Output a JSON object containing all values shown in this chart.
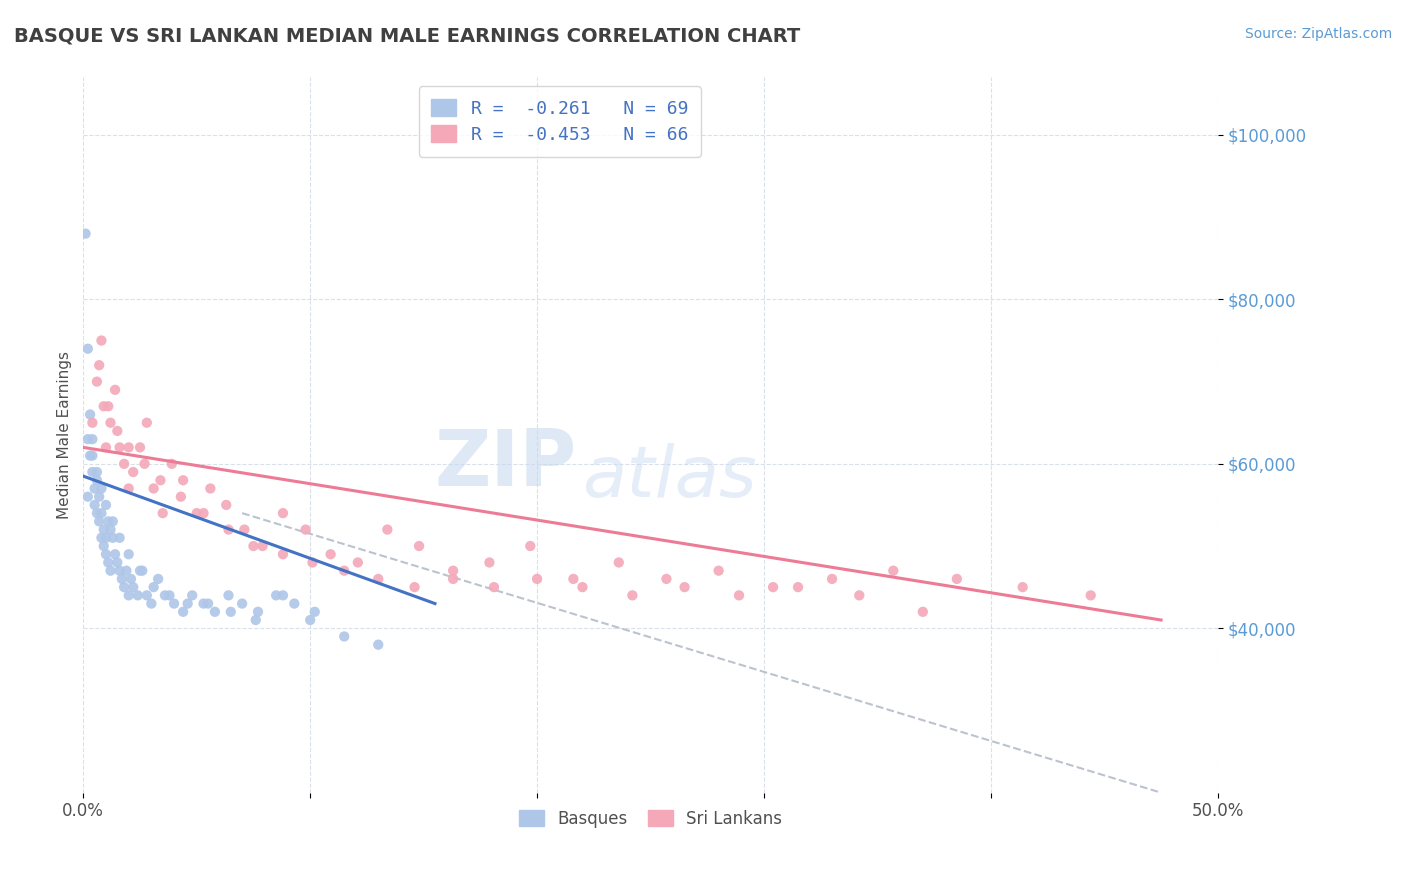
{
  "title": "BASQUE VS SRI LANKAN MEDIAN MALE EARNINGS CORRELATION CHART",
  "source": "Source: ZipAtlas.com",
  "ylabel": "Median Male Earnings",
  "watermark_zip": "ZIP",
  "watermark_atlas": "atlas",
  "xlim": [
    0.0,
    0.5
  ],
  "ylim": [
    20000,
    107000
  ],
  "xtick_vals": [
    0.0,
    0.1,
    0.2,
    0.3,
    0.4,
    0.5
  ],
  "xtick_labels": [
    "0.0%",
    "",
    "",
    "",
    "",
    "50.0%"
  ],
  "ytick_vals": [
    40000,
    60000,
    80000,
    100000
  ],
  "ytick_labels": [
    "$40,000",
    "$60,000",
    "$80,000",
    "$100,000"
  ],
  "ytick_color": "#5b9bd5",
  "title_color": "#404040",
  "source_color": "#5b9bd5",
  "basque_color": "#aec6e8",
  "srilanka_color": "#f4a8b8",
  "basque_line_color": "#4472c4",
  "srilanka_line_color": "#ed7b96",
  "dashed_line_color": "#b0b8c8",
  "legend_label1": "R =  -0.261   N = 69",
  "legend_label2": "R =  -0.453   N = 66",
  "basque_line_x": [
    0.0,
    0.155
  ],
  "basque_line_y": [
    58500,
    43000
  ],
  "srilanka_line_x": [
    0.0,
    0.475
  ],
  "srilanka_line_y": [
    62000,
    41000
  ],
  "dash_line_x": [
    0.07,
    0.475
  ],
  "dash_line_y": [
    54000,
    20000
  ],
  "basque_x": [
    0.001,
    0.002,
    0.002,
    0.003,
    0.003,
    0.004,
    0.004,
    0.005,
    0.005,
    0.006,
    0.006,
    0.007,
    0.007,
    0.008,
    0.008,
    0.009,
    0.009,
    0.01,
    0.01,
    0.011,
    0.011,
    0.012,
    0.012,
    0.013,
    0.014,
    0.015,
    0.016,
    0.017,
    0.018,
    0.019,
    0.02,
    0.021,
    0.022,
    0.024,
    0.026,
    0.028,
    0.03,
    0.033,
    0.036,
    0.04,
    0.044,
    0.048,
    0.053,
    0.058,
    0.064,
    0.07,
    0.077,
    0.085,
    0.093,
    0.102,
    0.002,
    0.004,
    0.006,
    0.008,
    0.01,
    0.013,
    0.016,
    0.02,
    0.025,
    0.031,
    0.038,
    0.046,
    0.055,
    0.065,
    0.076,
    0.088,
    0.1,
    0.115,
    0.13
  ],
  "basque_y": [
    88000,
    74000,
    56000,
    66000,
    61000,
    59000,
    63000,
    57000,
    55000,
    54000,
    58000,
    53000,
    56000,
    51000,
    54000,
    52000,
    50000,
    51000,
    49000,
    53000,
    48000,
    52000,
    47000,
    51000,
    49000,
    48000,
    47000,
    46000,
    45000,
    47000,
    44000,
    46000,
    45000,
    44000,
    47000,
    44000,
    43000,
    46000,
    44000,
    43000,
    42000,
    44000,
    43000,
    42000,
    44000,
    43000,
    42000,
    44000,
    43000,
    42000,
    63000,
    61000,
    59000,
    57000,
    55000,
    53000,
    51000,
    49000,
    47000,
    45000,
    44000,
    43000,
    43000,
    42000,
    41000,
    44000,
    41000,
    39000,
    38000
  ],
  "srilanka_x": [
    0.004,
    0.006,
    0.008,
    0.009,
    0.01,
    0.012,
    0.014,
    0.016,
    0.018,
    0.02,
    0.022,
    0.025,
    0.028,
    0.031,
    0.035,
    0.039,
    0.044,
    0.05,
    0.056,
    0.063,
    0.071,
    0.079,
    0.088,
    0.098,
    0.109,
    0.121,
    0.134,
    0.148,
    0.163,
    0.179,
    0.197,
    0.216,
    0.236,
    0.257,
    0.28,
    0.304,
    0.33,
    0.357,
    0.385,
    0.414,
    0.444,
    0.007,
    0.011,
    0.015,
    0.02,
    0.027,
    0.034,
    0.043,
    0.053,
    0.064,
    0.075,
    0.088,
    0.101,
    0.115,
    0.13,
    0.146,
    0.163,
    0.181,
    0.2,
    0.22,
    0.242,
    0.265,
    0.289,
    0.315,
    0.342,
    0.37
  ],
  "srilanka_y": [
    65000,
    70000,
    75000,
    67000,
    62000,
    65000,
    69000,
    62000,
    60000,
    57000,
    59000,
    62000,
    65000,
    57000,
    54000,
    60000,
    58000,
    54000,
    57000,
    55000,
    52000,
    50000,
    54000,
    52000,
    49000,
    48000,
    52000,
    50000,
    47000,
    48000,
    50000,
    46000,
    48000,
    46000,
    47000,
    45000,
    46000,
    47000,
    46000,
    45000,
    44000,
    72000,
    67000,
    64000,
    62000,
    60000,
    58000,
    56000,
    54000,
    52000,
    50000,
    49000,
    48000,
    47000,
    46000,
    45000,
    46000,
    45000,
    46000,
    45000,
    44000,
    45000,
    44000,
    45000,
    44000,
    42000
  ]
}
